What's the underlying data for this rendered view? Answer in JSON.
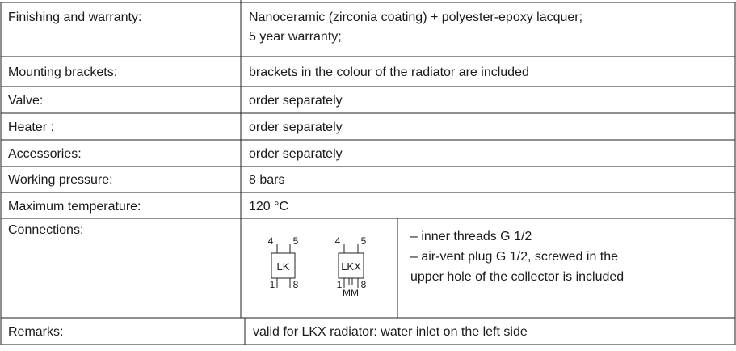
{
  "rows": [
    {
      "label": "Finishing and warranty:",
      "lines": [
        "Nanoceramic (zirconia coating) + polyester-epoxy lacquer;",
        "5 year warranty;"
      ]
    },
    {
      "label": "Mounting brackets:",
      "lines": [
        "brackets in the colour of the radiator are included"
      ]
    },
    {
      "label": "Valve:",
      "lines": [
        "order separately"
      ]
    },
    {
      "label": "Heater :",
      "lines": [
        "order separately"
      ]
    },
    {
      "label": "Accessories:",
      "lines": [
        "order separately"
      ]
    },
    {
      "label": "Working pressure:",
      "lines": [
        "8 bars"
      ]
    },
    {
      "label": "Maximum temperature:",
      "lines": [
        "120 °C"
      ]
    },
    {
      "label": "Connections:",
      "lines": [
        "– inner threads G 1/2",
        "– air-vent plug G 1/2, screwed  in the",
        "upper hole  of the collector is included"
      ],
      "diagrams": [
        {
          "label": "LK",
          "pins": [
            "4",
            "5",
            "1",
            "8"
          ]
        },
        {
          "label": "LKX",
          "pins": [
            "4",
            "5",
            "1",
            "8"
          ],
          "sub": "MM"
        }
      ]
    },
    {
      "label": "Remarks:",
      "lines": [
        "valid for LKX radiator: water inlet on the left side"
      ]
    }
  ]
}
